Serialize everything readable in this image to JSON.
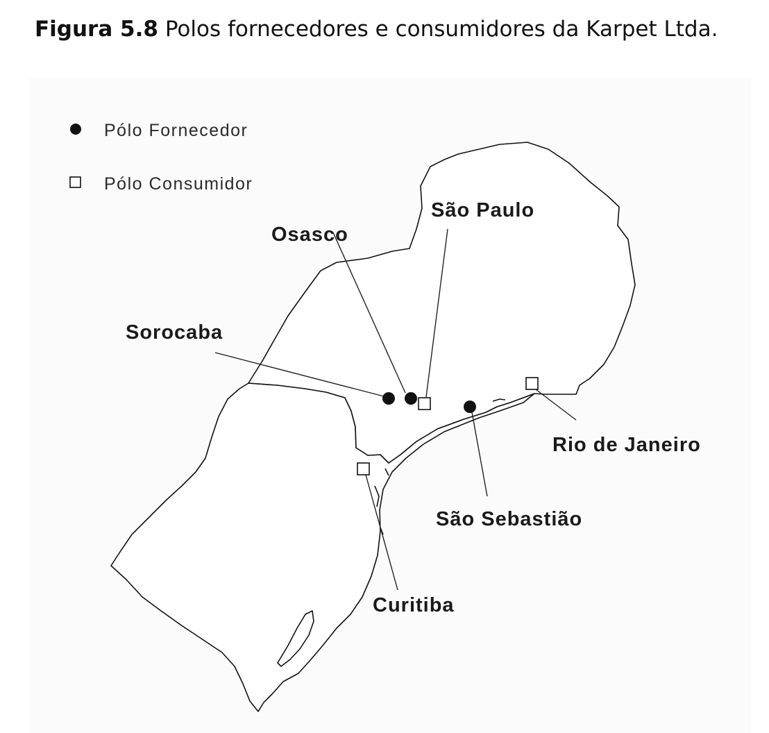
{
  "caption": {
    "label": "Figura 5.8",
    "text": "Polos fornecedores e consumidores da Karpet Ltda."
  },
  "legend": {
    "supplier": {
      "label": "Pólo Fornecedor",
      "symbol": "filled-circle"
    },
    "consumer": {
      "label": "Pólo Consumidor",
      "symbol": "hollow-square"
    }
  },
  "cities": [
    {
      "name": "São Paulo",
      "type": "consumer"
    },
    {
      "name": "Osasco",
      "type": "supplier"
    },
    {
      "name": "Sorocaba",
      "type": "supplier"
    },
    {
      "name": "Rio de Janeiro",
      "type": "consumer"
    },
    {
      "name": "São Sebastião",
      "type": "supplier"
    },
    {
      "name": "Curitiba",
      "type": "consumer"
    }
  ],
  "colors": {
    "ink": "#111111",
    "background": "#ffffff",
    "panel": "#fbfbfb"
  }
}
